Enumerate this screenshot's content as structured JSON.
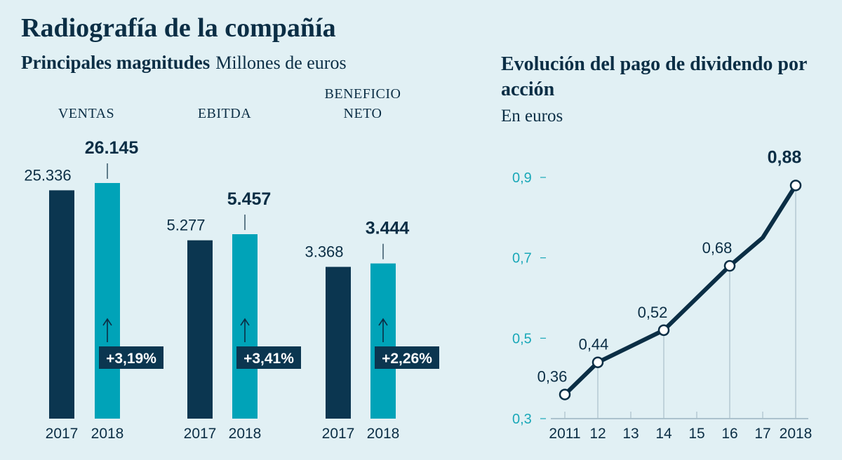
{
  "title": "Radiografía de la compañía",
  "left": {
    "subtitle": "Principales magnitudes",
    "unit": "Millones de euros"
  },
  "right": {
    "title": "Evolución del pago de dividendo por acción",
    "unit": "En euros"
  },
  "chart_data": [
    {
      "type": "bar",
      "title": "Principales magnitudes",
      "ylabel": "Millones de euros",
      "groups": [
        {
          "label_lines": [
            "VENTAS"
          ],
          "years": [
            "2017",
            "2018"
          ],
          "values": [
            25336,
            26145
          ],
          "value_labels": [
            "25.336",
            "26.145"
          ],
          "change": "+3,19%",
          "ymax": 27000
        },
        {
          "label_lines": [
            "EBITDA"
          ],
          "years": [
            "2017",
            "2018"
          ],
          "values": [
            5277,
            5457
          ],
          "value_labels": [
            "5.277",
            "5.457"
          ],
          "change": "+3,41%",
          "ymax": 7200
        },
        {
          "label_lines": [
            "BENEFICIO",
            "NETO"
          ],
          "years": [
            "2017",
            "2018"
          ],
          "values": [
            3368,
            3444
          ],
          "value_labels": [
            "3.368",
            "3.444"
          ],
          "change": "+2,26%",
          "ymax": 5400
        }
      ],
      "colors": {
        "prev": "#0b3650",
        "curr": "#00a3b8",
        "badge": "#0b3650"
      }
    },
    {
      "type": "line",
      "title": "Evolución del pago de dividendo por acción",
      "ylabel": "En euros",
      "x": [
        "2011",
        "12",
        "13",
        "14",
        "15",
        "16",
        "17",
        "2018"
      ],
      "values": [
        0.36,
        0.44,
        0.48,
        0.52,
        0.6,
        0.68,
        0.75,
        0.88
      ],
      "labeled": [
        {
          "index": 0,
          "label": "0,36"
        },
        {
          "index": 1,
          "label": "0,44"
        },
        {
          "index": 3,
          "label": "0,52"
        },
        {
          "index": 5,
          "label": "0,68"
        },
        {
          "index": 7,
          "label": "0,88"
        }
      ],
      "yticks": [
        0.3,
        0.5,
        0.7,
        0.9
      ],
      "ytick_labels": [
        "0,3",
        "0,5",
        "0,7",
        "0,9"
      ],
      "ylim": [
        0.3,
        0.9
      ],
      "colors": {
        "line": "#0b2e45",
        "tick": "#1aa8b8"
      }
    }
  ]
}
